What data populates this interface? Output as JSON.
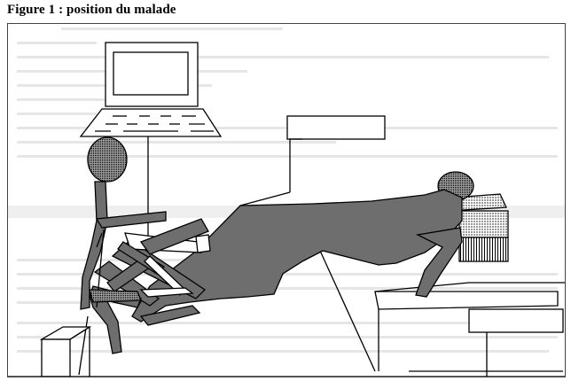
{
  "figure": {
    "title": "Figure 1 : position du malade"
  },
  "colors": {
    "ink": "#000000",
    "patient_fill": "#6e6e6e",
    "bleed_through": "#d8d8d8",
    "frame": "#444444"
  }
}
